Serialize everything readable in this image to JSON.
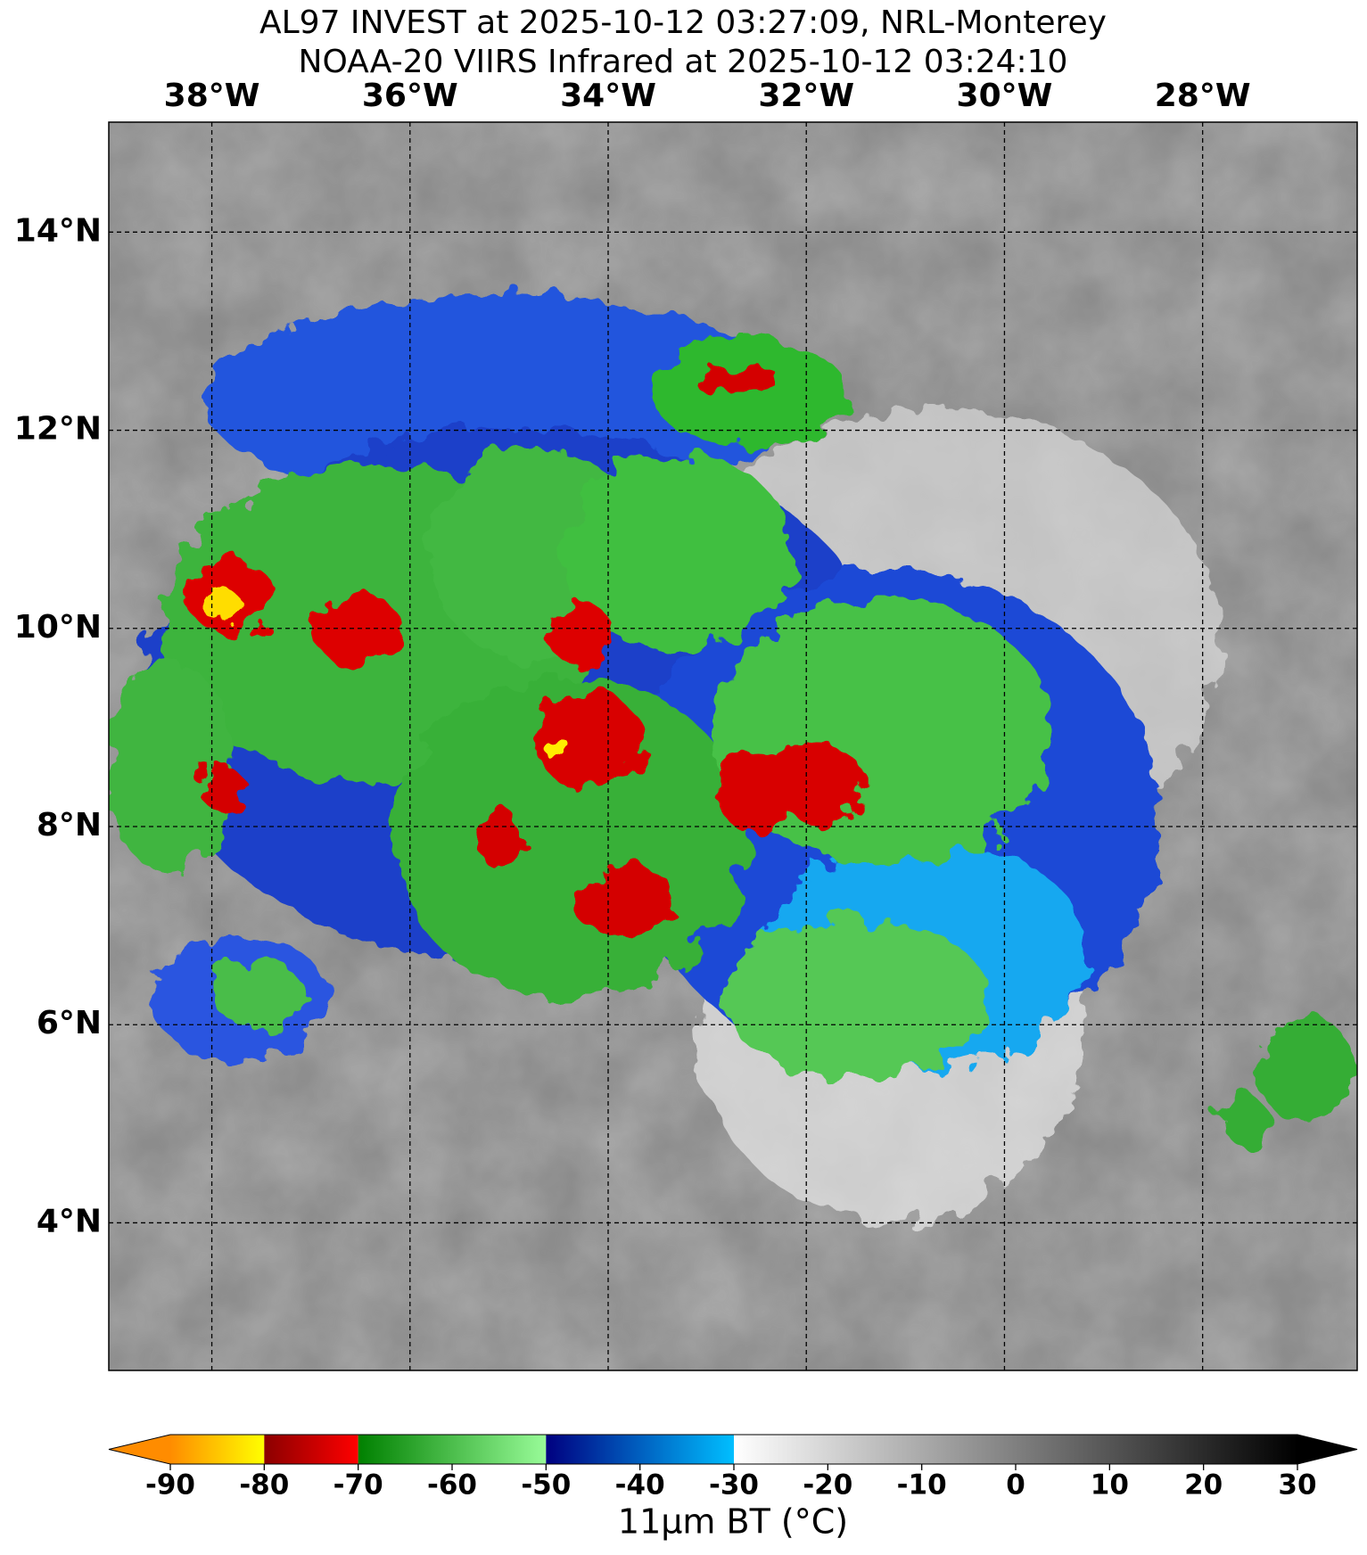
{
  "header": {
    "title_lines": [
      "AL97 INVEST at 2025-10-12 03:27:09, NRL-Monterey",
      "NOAA-20 VIIRS Infrared at 2025-10-12 03:24:10"
    ]
  },
  "map": {
    "xlim": [
      -39.04,
      -26.44
    ],
    "ylim": [
      2.51,
      15.11
    ],
    "xticks": [
      {
        "value": -38,
        "label": "38°W"
      },
      {
        "value": -36,
        "label": "36°W"
      },
      {
        "value": -34,
        "label": "34°W"
      },
      {
        "value": -32,
        "label": "32°W"
      },
      {
        "value": -30,
        "label": "30°W"
      },
      {
        "value": -28,
        "label": "28°W"
      }
    ],
    "yticks": [
      {
        "value": 4,
        "label": "4°N"
      },
      {
        "value": 6,
        "label": "6°N"
      },
      {
        "value": 8,
        "label": "8°N"
      },
      {
        "value": 10,
        "label": "10°N"
      },
      {
        "value": 12,
        "label": "12°N"
      },
      {
        "value": 14,
        "label": "14°N"
      }
    ],
    "grid": true
  },
  "colorbar": {
    "label": "11μm BT (°C)",
    "lim": [
      -90,
      30
    ],
    "ticks": [
      -90,
      -80,
      -70,
      -60,
      -50,
      -40,
      -30,
      -20,
      -10,
      0,
      10,
      20,
      30
    ],
    "segments": [
      {
        "range": [
          -90,
          -80
        ],
        "colors": [
          "#ff8c00",
          "#ffff00"
        ]
      },
      {
        "range": [
          -80,
          -70
        ],
        "colors": [
          "#8b0000",
          "#ff0000"
        ]
      },
      {
        "range": [
          -70,
          -50
        ],
        "colors": [
          "#008000",
          "#98fb98"
        ]
      },
      {
        "range": [
          -50,
          -30
        ],
        "colors": [
          "#000080",
          "#00bfff"
        ]
      },
      {
        "range": [
          -30,
          30
        ],
        "colors": [
          "#ffffff",
          "#000000"
        ]
      }
    ],
    "extend_colors": [
      "#ff8c00",
      "#000000"
    ]
  }
}
